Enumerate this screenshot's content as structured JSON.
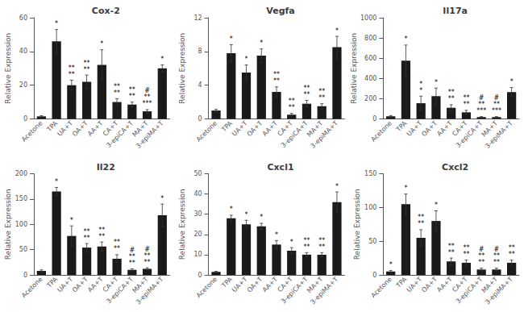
{
  "chart_data": [
    {
      "type": "bar",
      "title": "Cox-2",
      "categories": [
        "Acetone",
        "TPA",
        "UA+T",
        "OA+T",
        "AA+T",
        "CA+T",
        "3-epiCA+T",
        "MA+T",
        "3-epiMA+T"
      ],
      "values": [
        1.5,
        46,
        20,
        22,
        32,
        10,
        8.5,
        4.5,
        30
      ],
      "errors": [
        0.4,
        7,
        3,
        4,
        9,
        2,
        1.5,
        1,
        2
      ],
      "annotations": [
        [],
        [
          "*"
        ],
        [
          "**",
          "**"
        ],
        [
          "**",
          "**"
        ],
        [
          "*"
        ],
        [
          "**",
          "**"
        ],
        [
          "**",
          "**"
        ],
        [
          "#",
          "**",
          "***"
        ],
        [
          "*"
        ]
      ],
      "ylabel": "Relative Expression",
      "color": "#1a1a1a",
      "ylim": [
        0,
        60
      ],
      "yticks": [
        0,
        20,
        40,
        60
      ],
      "grid": false
    },
    {
      "type": "bar",
      "title": "Vegfa",
      "categories": [
        "Acetone",
        "TPA",
        "UA+T",
        "OA+T",
        "AA+T",
        "CA+T",
        "3-epiCA+T",
        "MA+T",
        "3-epiMA+T"
      ],
      "values": [
        1.0,
        7.8,
        5.5,
        7.5,
        3.2,
        0.5,
        1.8,
        1.5,
        8.5
      ],
      "errors": [
        0.15,
        1.0,
        0.9,
        0.8,
        0.6,
        0.15,
        0.4,
        0.3,
        1.3
      ],
      "annotations": [
        [],
        [
          "*"
        ],
        [
          "*"
        ],
        [
          "*"
        ],
        [
          "**",
          "**"
        ],
        [
          "**",
          "**"
        ],
        [
          "**",
          "**"
        ],
        [
          "**",
          "**"
        ],
        [
          "*"
        ]
      ],
      "ylabel": "Relative Expression",
      "color": "#1a1a1a",
      "ylim": [
        0,
        12
      ],
      "yticks": [
        0,
        4,
        8,
        12
      ],
      "grid": false
    },
    {
      "type": "bar",
      "title": "Il17a",
      "categories": [
        "Acetone",
        "TPA",
        "UA+T",
        "OA+T",
        "AA+T",
        "CA+T",
        "3-epiCA+T",
        "MA+T",
        "3-epiMA+T"
      ],
      "values": [
        25,
        575,
        155,
        225,
        110,
        65,
        18,
        18,
        265
      ],
      "errors": [
        8,
        155,
        70,
        80,
        30,
        20,
        5,
        5,
        45
      ],
      "annotations": [
        [],
        [
          "*"
        ],
        [
          "*",
          "*"
        ],
        [
          "*"
        ],
        [
          "**",
          "**"
        ],
        [
          "**",
          "**"
        ],
        [
          "#",
          "**",
          "***"
        ],
        [
          "#",
          "**",
          "***"
        ],
        [
          "*"
        ]
      ],
      "ylabel": "Relative Expression",
      "color": "#1a1a1a",
      "ylim": [
        0,
        1000
      ],
      "yticks": [
        0,
        200,
        400,
        600,
        800,
        1000
      ],
      "grid": false
    },
    {
      "type": "bar",
      "title": "Il22",
      "categories": [
        "Acetone",
        "TPA",
        "UA+T",
        "OA+T",
        "AA+T",
        "CA+T",
        "3-epiCA+T",
        "MA+T",
        "3-epiMA+T"
      ],
      "values": [
        8,
        165,
        77,
        54,
        56,
        32,
        10,
        12,
        118
      ],
      "errors": [
        2,
        8,
        20,
        8,
        9,
        8,
        2,
        2,
        22
      ],
      "annotations": [
        [],
        [
          "*"
        ],
        [
          "*"
        ],
        [
          "**",
          "**"
        ],
        [
          "**",
          "**"
        ],
        [
          "**",
          "**"
        ],
        [
          "#",
          "**",
          "**"
        ],
        [
          "#",
          "**",
          "**"
        ],
        [
          "*"
        ]
      ],
      "ylabel": "Relative Expression",
      "color": "#1a1a1a",
      "ylim": [
        0,
        200
      ],
      "yticks": [
        0,
        50,
        100,
        150,
        200
      ],
      "grid": false
    },
    {
      "type": "bar",
      "title": "Cxcl1",
      "categories": [
        "Acetone",
        "TPA",
        "UA+T",
        "OA+T",
        "AA+T",
        "CA+T",
        "3-epiCA+T",
        "MA+T",
        "3-epiMA+T"
      ],
      "values": [
        1.5,
        28,
        25,
        24,
        15,
        12,
        10,
        10,
        36
      ],
      "errors": [
        0.3,
        1.5,
        2,
        1.5,
        2,
        1.5,
        1,
        1,
        5
      ],
      "annotations": [
        [],
        [
          "*"
        ],
        [
          "*"
        ],
        [
          "*"
        ],
        [
          "*"
        ],
        [
          "*"
        ],
        [
          "**",
          "**"
        ],
        [
          "**",
          "**"
        ],
        [
          "*"
        ]
      ],
      "ylabel": "Relative Expression",
      "color": "#1a1a1a",
      "ylim": [
        0,
        50
      ],
      "yticks": [
        0,
        10,
        20,
        30,
        40,
        50
      ],
      "grid": false
    },
    {
      "type": "bar",
      "title": "Cxcl2",
      "categories": [
        "Acetone",
        "TPA",
        "UA+T",
        "OA+T",
        "AA+T",
        "CA+T",
        "3-epiCA+T",
        "MA+T",
        "3-epiMA+T"
      ],
      "values": [
        5,
        105,
        55,
        80,
        20,
        18,
        8,
        8,
        18
      ],
      "errors": [
        1.5,
        15,
        12,
        15,
        5,
        4,
        2,
        2,
        4
      ],
      "annotations": [
        [
          "*"
        ],
        [
          "*"
        ],
        [
          "**",
          "**"
        ],
        [
          "*"
        ],
        [
          "**",
          "**"
        ],
        [
          "**",
          "**"
        ],
        [
          "#",
          "**",
          "**"
        ],
        [
          "#",
          "**",
          "**"
        ],
        [
          "**",
          "**"
        ]
      ],
      "ylabel": "Relative Expression",
      "color": "#1a1a1a",
      "ylim": [
        0,
        150
      ],
      "yticks": [
        0,
        50,
        100,
        150
      ],
      "grid": false
    }
  ]
}
